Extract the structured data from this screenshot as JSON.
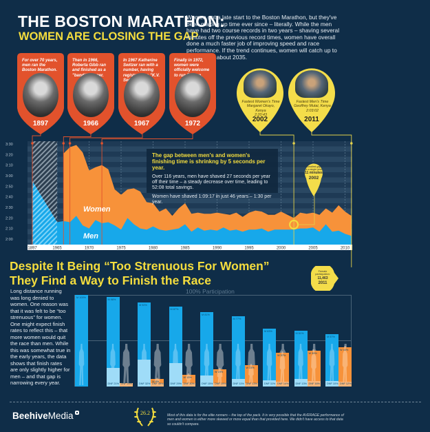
{
  "header": {
    "title": "THE BOSTON MARATHON:",
    "subtitle": "WOMEN ARE CLOSING THE GAP",
    "intro": "Women got a late start to the Boston Marathon, but they've been making up time ever since – literally. While the men have had two course records in two years – shaving several minutes off the previous record times, women have overall done a much faster job of improving speed and race performance. If the trend continues, women will catch up to the men by about 2035."
  },
  "timeline_pins": [
    {
      "text": "For over 70 years, men ran the Boston Marathon.",
      "year": "1897"
    },
    {
      "text": "Then in 1966, Roberta Gibb ran and finished as a \"bandit\" runner.",
      "year": "1966"
    },
    {
      "text": "In 1967 Katherine Switzer ran with a number, having registered as \"K.V. Switzer\".",
      "year": "1967"
    },
    {
      "text": "Finally in 1972, women were officially welcome to run Boston.",
      "year": "1972"
    }
  ],
  "record_pins": [
    {
      "line1": "Fastest Women's Time",
      "line2": "Margaret Okayo, Kenya",
      "line3": "2:20:43",
      "year": "2002"
    },
    {
      "line1": "Fastest Men's Time",
      "line2": "Geoffrey Mutai, Kenya",
      "line3": "2:03:02",
      "year": "2011"
    }
  ],
  "callout": {
    "title": "The gap between men's and women's finishing time is shrinkng by 5 seconds per year.",
    "line1": "Over 116 years, men have shaved 27 seconds per year off their time – a steady decrease over time, leading to 52:08 total savings.",
    "line2": "Women have shaved 1:09:17 in just 46 years – 1:30 per year."
  },
  "gap_pin": {
    "line1": "Smallest gap",
    "line2": "in a single year",
    "value": "11 minutes",
    "year": "2002"
  },
  "section2": {
    "heading1": "Despite It Being “Too Strenuous For Women”",
    "heading2": "They Find a Way to Finish the Race",
    "paragraph": "Long distance running was long denied to women. One reason was that it was felt to be “too strenuous” for women. One might expect finish rates to reflect this – that more women would quit the race than men. While this was somewhat true in the early years, the data shows that finish rates are only slightly higher for men – and that gap is narrowing every year.",
    "participation_label": "100% Participation"
  },
  "female_pin": {
    "line1": "Female",
    "line2": "participation:",
    "value": "11,463",
    "year": "2011"
  },
  "footer": {
    "logo_bold": "Beehive",
    "logo_light": "Media",
    "badge": "26.2",
    "disclaimer": "Most of this data is for the elite runners – the top of the pack. It is very possible that the AVERAGE performance of men and women is either more skewed or more equal than that provided here. We didn't have access to that data so couldn't compare."
  },
  "colors": {
    "background": "#0f2d48",
    "women": "#f7923a",
    "men": "#17a8ea",
    "pin_red": "#e2522c",
    "pin_yellow": "#f4dd4a",
    "accent_yellow": "#f4dd3e"
  },
  "chart_data": [
    {
      "type": "area",
      "title": "",
      "x_tick_labels": [
        "1897",
        "1965",
        "1970",
        "1975",
        "1980",
        "1985",
        "1990",
        "1995",
        "2000",
        "2005",
        "2010"
      ],
      "y_tick_labels": [
        "3:30",
        "3:20",
        "3:10",
        "3:00",
        "2:50",
        "2:40",
        "2:30",
        "2:20",
        "2:10",
        "2:00"
      ],
      "ylim": [
        "2:00",
        "3:30"
      ],
      "grid": true,
      "series": [
        {
          "name": "Women",
          "x": [
            1966,
            1967,
            1968,
            1969,
            1970,
            1971,
            1972,
            1973,
            1974,
            1975,
            1976,
            1977,
            1978,
            1979,
            1980,
            1981,
            1982,
            1983,
            1984,
            1985,
            1986,
            1987,
            1988,
            1989,
            1990,
            1991,
            1992,
            1993,
            1994,
            1995,
            1996,
            1997,
            1998,
            1999,
            2000,
            2001,
            2002,
            2003,
            2004,
            2005,
            2006,
            2007,
            2008,
            2009,
            2010,
            2011
          ],
          "y": [
            "3:21",
            "3:27",
            "3:29",
            "3:22",
            "3:05",
            "3:08",
            "3:10",
            "3:06",
            "2:47",
            "2:42",
            "2:47",
            "2:48",
            "2:45",
            "2:35",
            "2:34",
            "2:26",
            "2:29",
            "2:22",
            "2:29",
            "2:34",
            "2:24",
            "2:25",
            "2:24",
            "2:24",
            "2:25",
            "2:24",
            "2:23",
            "2:25",
            "2:21",
            "2:25",
            "2:27",
            "2:26",
            "2:23",
            "2:23",
            "2:26",
            "2:23",
            "2:20",
            "2:25",
            "2:24",
            "2:25",
            "2:23",
            "2:29",
            "2:25",
            "2:32",
            "2:26",
            "2:22"
          ]
        },
        {
          "name": "Men",
          "x": [
            1897,
            1965,
            1966,
            1967,
            1968,
            1969,
            1970,
            1971,
            1972,
            1973,
            1974,
            1975,
            1976,
            1977,
            1978,
            1979,
            1980,
            1981,
            1982,
            1983,
            1984,
            1985,
            1986,
            1987,
            1988,
            1989,
            1990,
            1991,
            1992,
            1993,
            1994,
            1995,
            1996,
            1997,
            1998,
            1999,
            2000,
            2001,
            2002,
            2003,
            2004,
            2005,
            2006,
            2007,
            2008,
            2009,
            2010,
            2011
          ],
          "y": [
            "2:55",
            "2:16",
            "2:17",
            "2:16",
            "2:22",
            "2:13",
            "2:10",
            "2:18",
            "2:15",
            "2:16",
            "2:13",
            "2:09",
            "2:20",
            "2:14",
            "2:10",
            "2:09",
            "2:12",
            "2:09",
            "2:08",
            "2:09",
            "2:10",
            "2:14",
            "2:07",
            "2:11",
            "2:08",
            "2:09",
            "2:08",
            "2:11",
            "2:08",
            "2:09",
            "2:07",
            "2:09",
            "2:09",
            "2:10",
            "2:07",
            "2:09",
            "2:09",
            "2:09",
            "2:09",
            "2:10",
            "2:10",
            "2:11",
            "2:07",
            "2:14",
            "2:07",
            "2:08",
            "2:05",
            "2:03"
          ]
        }
      ],
      "markers": [
        "1897",
        "1966",
        "1967",
        "1972",
        "2002",
        "2011"
      ]
    },
    {
      "type": "bar",
      "title": "",
      "ylim": [
        0,
        100
      ],
      "series": [
        {
          "name": "Men",
          "finish": [
            "M 100%",
            "M 98%",
            "M 92%",
            "M 87%",
            "M 81%",
            "M 77%",
            "M 63%",
            "M 61%",
            "M 57%"
          ],
          "values": [
            100,
            98,
            92,
            87,
            81,
            77,
            63,
            61,
            57
          ],
          "dnf_labels": [
            "",
            "DNF 21%",
            "DNF 32%",
            "DNF 29%",
            "DNF 15%",
            "DNF 11%",
            "DNF 11%",
            "DNF 13%",
            "DNF 10%"
          ],
          "dnf": [
            0,
            21,
            32,
            29,
            15,
            11,
            11,
            13,
            10
          ]
        },
        {
          "name": "Women",
          "finish": [
            "",
            "W 2%",
            "W 8%",
            "W 13%",
            "W 19%",
            "W 23%",
            "W 37%",
            "W 39%",
            "W 43%"
          ],
          "values": [
            0,
            2,
            8,
            13,
            19,
            23,
            37,
            39,
            43
          ],
          "dnf_labels": [
            "",
            "DNF 24%",
            "DNF 49%",
            "DNF 30%",
            "DNF 19%",
            "DNF 13%",
            "DNF 14%",
            "DNF 16%",
            "DNF 12%"
          ],
          "dnf": [
            0,
            24,
            49,
            30,
            19,
            13,
            14,
            16,
            12
          ]
        }
      ]
    }
  ]
}
